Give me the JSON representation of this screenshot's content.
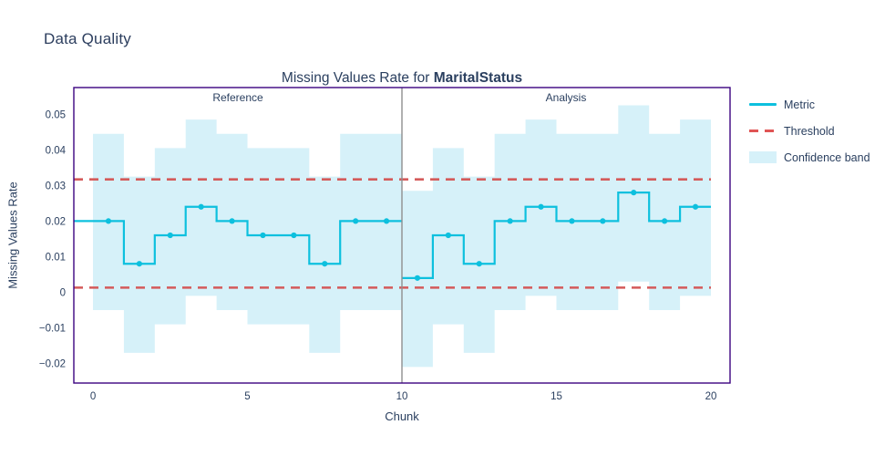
{
  "page": {
    "title": "Data Quality"
  },
  "chart": {
    "title_prefix": "Missing Values Rate for ",
    "title_emphasis": "MaritalStatus",
    "xlabel": "Chunk",
    "ylabel": "Missing Values Rate",
    "annotations": {
      "reference": "Reference",
      "analysis": "Analysis"
    }
  },
  "legend": {
    "items": [
      {
        "label": "Metric",
        "swatch": "line"
      },
      {
        "label": "Threshold",
        "swatch": "dash"
      },
      {
        "label": "Confidence band",
        "swatch": "band"
      }
    ]
  },
  "chart_data": {
    "type": "line",
    "step": true,
    "title": "Missing Values Rate for MaritalStatus",
    "xlabel": "Chunk",
    "ylabel": "Missing Values Rate",
    "xlim": [
      -0.62,
      20.62
    ],
    "ylim": [
      -0.0255,
      0.0575
    ],
    "x_ticks": [
      0,
      5,
      10,
      15,
      20
    ],
    "y_ticks": [
      0.05,
      0.04,
      0.03,
      0.02,
      0.01,
      0,
      -0.01,
      -0.02
    ],
    "separator_x": 10,
    "threshold_x_end": 20,
    "thresholds": {
      "upper": 0.0317,
      "lower": 0.0013
    },
    "series": [
      {
        "name": "Reference",
        "start": 0,
        "chunks": [
          0,
          1,
          2,
          3,
          4,
          5,
          6,
          7,
          8,
          9
        ],
        "values": [
          0.02,
          0.008,
          0.016,
          0.024,
          0.02,
          0.016,
          0.016,
          0.008,
          0.02,
          0.02
        ],
        "upper": [
          0.0445,
          0.0325,
          0.0405,
          0.0485,
          0.0445,
          0.0405,
          0.0405,
          0.0325,
          0.0445,
          0.0445
        ],
        "lower": [
          -0.005,
          -0.017,
          -0.009,
          -0.001,
          -0.005,
          -0.009,
          -0.009,
          -0.017,
          -0.005,
          -0.005
        ]
      },
      {
        "name": "Analysis",
        "start": 10,
        "chunks": [
          10,
          11,
          12,
          13,
          14,
          15,
          16,
          17,
          18,
          19
        ],
        "values": [
          0.004,
          0.016,
          0.008,
          0.02,
          0.024,
          0.02,
          0.02,
          0.028,
          0.02,
          0.024
        ],
        "upper": [
          0.0285,
          0.0405,
          0.0325,
          0.0445,
          0.0485,
          0.0445,
          0.0445,
          0.0525,
          0.0445,
          0.0485
        ],
        "lower": [
          -0.021,
          -0.009,
          -0.017,
          -0.005,
          -0.001,
          -0.005,
          -0.005,
          0.003,
          -0.005,
          -0.001
        ]
      }
    ],
    "colors": {
      "metric": "#0dc0de",
      "threshold": "#d45a5a",
      "band": "#d6f1f9",
      "border": "#3b0280",
      "separator": "#8f8f8f",
      "text": "#2a3f5f"
    },
    "legend_position": "right",
    "grid": false
  }
}
